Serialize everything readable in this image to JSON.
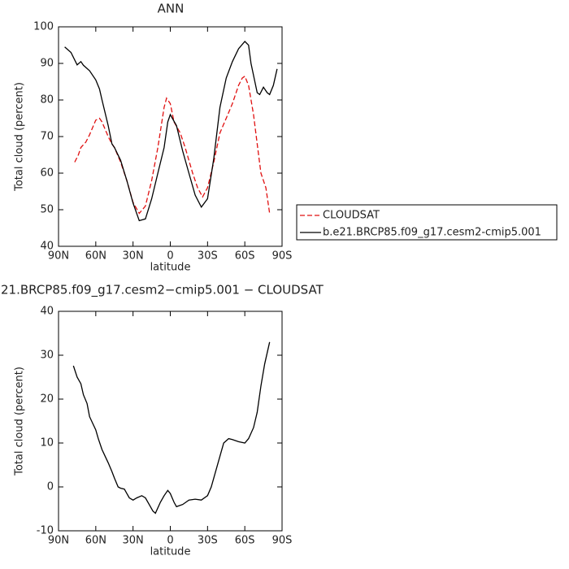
{
  "chart_data": [
    {
      "type": "line",
      "title": "ANN",
      "xlabel": "latitude",
      "ylabel": "Total cloud (percent)",
      "xlim": [
        90,
        -90
      ],
      "xticks": [
        {
          "value": 90,
          "label": "90N"
        },
        {
          "value": 60,
          "label": "60N"
        },
        {
          "value": 30,
          "label": "30N"
        },
        0,
        {
          "value": -30,
          "label": "30S"
        },
        {
          "value": -60,
          "label": "60S"
        },
        {
          "value": -90,
          "label": "90S"
        }
      ],
      "ylim": [
        40,
        100
      ],
      "yticks": [
        40,
        50,
        60,
        70,
        80,
        90,
        100
      ],
      "legend": "right",
      "series": [
        {
          "name": "CLOUDSAT",
          "color": "#e01010",
          "style": "dashed",
          "x": [
            77,
            74,
            72,
            68,
            65,
            60,
            57,
            55,
            50,
            47,
            45,
            40,
            35,
            30,
            25,
            20,
            15,
            10,
            5,
            3,
            0,
            -3,
            -8,
            -12,
            -18,
            -22,
            -26,
            -30,
            -35,
            -40,
            -45,
            -50,
            -55,
            -58,
            -60,
            -63,
            -67,
            -70,
            -73,
            -77,
            -80
          ],
          "values": [
            63,
            65,
            67,
            68.5,
            70.5,
            74.5,
            75,
            74,
            70,
            68,
            67,
            63,
            58,
            52,
            49,
            51,
            58,
            67,
            78,
            80.5,
            79,
            74,
            71,
            67,
            60,
            56,
            53.5,
            56,
            63,
            71,
            75,
            79,
            84,
            86,
            86.5,
            84,
            76,
            68,
            60,
            56,
            49
          ]
        },
        {
          "name": "b.e21.BRCP85.f09_g17.cesm2-cmip5.001",
          "color": "#000000",
          "style": "solid",
          "x": [
            85,
            80,
            75,
            72,
            70,
            65,
            60,
            57,
            55,
            50,
            47,
            45,
            40,
            35,
            30,
            25,
            20,
            15,
            10,
            5,
            2,
            0,
            -5,
            -10,
            -15,
            -20,
            -25,
            -30,
            -35,
            -40,
            -45,
            -50,
            -55,
            -60,
            -63,
            -65,
            -70,
            -72,
            -75,
            -78,
            -80,
            -83,
            -86
          ],
          "values": [
            94.5,
            93,
            89.6,
            90.5,
            89.5,
            88,
            85.5,
            83,
            80,
            73,
            68,
            67,
            63.5,
            58,
            51.8,
            47,
            47.5,
            53,
            60,
            67,
            74,
            76,
            73,
            66,
            60,
            54,
            50.7,
            53,
            64,
            78,
            86,
            90.5,
            94,
            96,
            95,
            90,
            82,
            81.5,
            83.5,
            82,
            81.5,
            84,
            88.5
          ]
        }
      ]
    },
    {
      "type": "line",
      "title": "21.BRCP85.f09_g17.cesm2−cmip5.001 − CLOUDSAT",
      "xlabel": "latitude",
      "ylabel": "Total cloud (percent)",
      "xlim": [
        90,
        -90
      ],
      "xticks": [
        {
          "value": 90,
          "label": "90N"
        },
        {
          "value": 60,
          "label": "60N"
        },
        {
          "value": 30,
          "label": "30N"
        },
        0,
        {
          "value": -30,
          "label": "30S"
        },
        {
          "value": -60,
          "label": "60S"
        },
        {
          "value": -90,
          "label": "90S"
        }
      ],
      "ylim": [
        -10,
        40
      ],
      "yticks": [
        -10,
        0,
        10,
        20,
        30,
        40
      ],
      "series": [
        {
          "color": "#000000",
          "style": "solid",
          "x": [
            78,
            75,
            72,
            70,
            67,
            65,
            60,
            58,
            55,
            50,
            47,
            45,
            42,
            40,
            37,
            35,
            33,
            30,
            27,
            23,
            20,
            17,
            14,
            12,
            8,
            5,
            2,
            0,
            -3,
            -5,
            -10,
            -15,
            -20,
            -25,
            -30,
            -33,
            -37,
            -40,
            -43,
            -47,
            -50,
            -55,
            -60,
            -63,
            -67,
            -70,
            -73,
            -76,
            -80
          ],
          "values": [
            27.6,
            25,
            23.5,
            21,
            19,
            16,
            13,
            11,
            8.5,
            5.5,
            3.5,
            2,
            0,
            -0.3,
            -0.5,
            -1.5,
            -2.5,
            -3,
            -2.5,
            -2,
            -2.5,
            -4,
            -5.5,
            -6,
            -3.5,
            -2,
            -0.8,
            -1.5,
            -3.5,
            -4.5,
            -4,
            -3,
            -2.8,
            -3,
            -2,
            0,
            4,
            7,
            10,
            11,
            10.8,
            10.3,
            10,
            11,
            13.5,
            17,
            23,
            28,
            33
          ]
        }
      ]
    }
  ]
}
